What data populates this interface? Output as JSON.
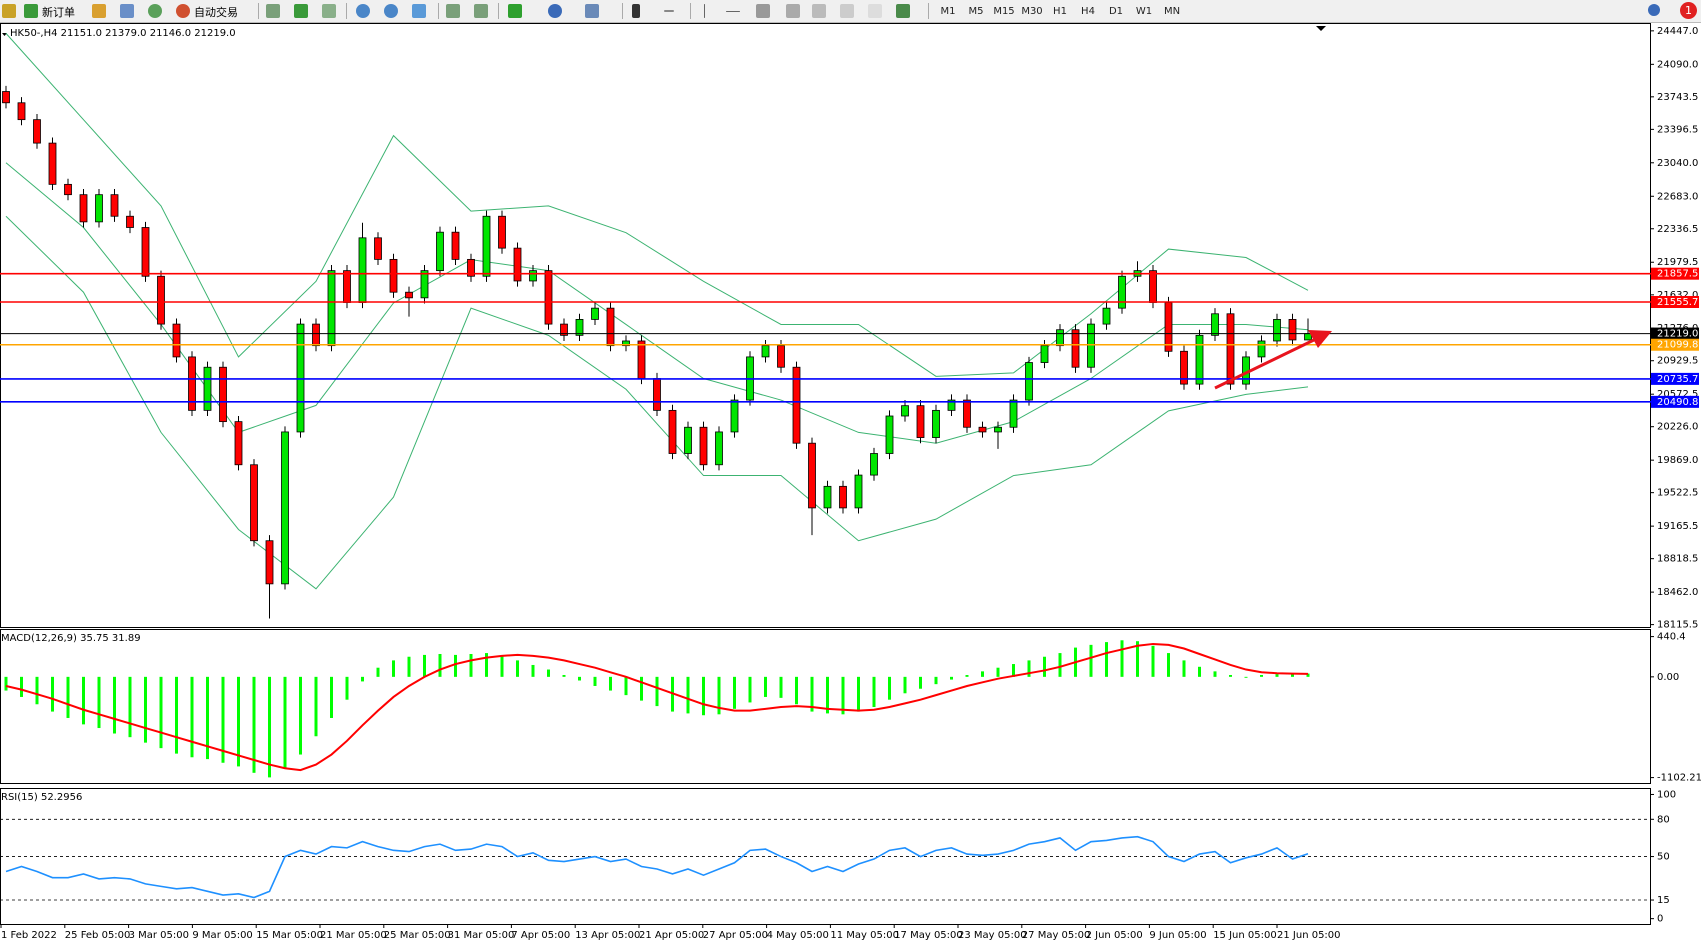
{
  "toolbar": {
    "buttons": [
      "新订单",
      "自动交易"
    ],
    "periods": [
      "M1",
      "M5",
      "M15",
      "M30",
      "H1",
      "H4",
      "D1",
      "W1",
      "MN"
    ],
    "notifications": 1
  },
  "main_chart": {
    "type": "candlestick",
    "title": "HK50-,H4  21151.0 21379.0 21146.0 21219.0",
    "open": [
      23800,
      23680,
      23500,
      23250,
      22810,
      22700,
      22410,
      22700,
      22470,
      22350,
      21830,
      21320,
      20970,
      20400,
      20860,
      20280,
      19820,
      19010,
      18550,
      20170,
      21320,
      21090,
      21890,
      21550,
      22240,
      22010,
      21660,
      21600,
      21890,
      22300,
      22010,
      21830,
      22470,
      22130,
      21780,
      21890,
      21320,
      21200,
      21370,
      21490,
      21090,
      21140,
      20740,
      20400,
      19940,
      20220,
      19820,
      20170,
      20510,
      20970,
      21090,
      20860,
      20050,
      19360,
      19590,
      19360,
      19710,
      19940,
      20340,
      20450,
      20110,
      20400,
      20510,
      20220,
      20170,
      20220,
      20510,
      20910,
      21090,
      21260,
      20860,
      21320,
      21490,
      21830,
      21890,
      21550,
      21030,
      20680,
      21200,
      21430,
      20680,
      20970,
      21140,
      21370,
      21151
    ],
    "high": [
      23860,
      23740,
      23560,
      23310,
      22870,
      22760,
      22760,
      22760,
      22530,
      22410,
      21890,
      21380,
      21030,
      20920,
      20920,
      20340,
      19880,
      19070,
      20230,
      21380,
      21380,
      21950,
      21950,
      22400,
      22300,
      22070,
      21720,
      21950,
      22360,
      22360,
      22070,
      22530,
      22530,
      22190,
      21950,
      21950,
      21380,
      21430,
      21550,
      21550,
      21200,
      21200,
      20800,
      20460,
      20280,
      20280,
      20230,
      20570,
      21030,
      21150,
      21150,
      20920,
      20110,
      19650,
      19650,
      19770,
      20000,
      20400,
      20510,
      20510,
      20460,
      20570,
      20570,
      20280,
      20280,
      20570,
      20970,
      21150,
      21320,
      21320,
      21380,
      21550,
      21890,
      21990,
      21950,
      21610,
      21090,
      21260,
      21490,
      21490,
      21030,
      21200,
      21430,
      21430,
      21379
    ],
    "low": [
      23620,
      23440,
      23190,
      22750,
      22640,
      22350,
      22350,
      22410,
      22290,
      21770,
      21260,
      20910,
      20340,
      20340,
      20220,
      19760,
      18950,
      18180,
      18490,
      20110,
      21030,
      21030,
      21490,
      21490,
      21950,
      21600,
      21400,
      21540,
      21830,
      21950,
      21770,
      21770,
      22070,
      21720,
      21720,
      21260,
      21140,
      21140,
      21310,
      21030,
      21030,
      20680,
      20340,
      19880,
      19880,
      19760,
      19760,
      20110,
      20450,
      20910,
      20800,
      19990,
      19070,
      19300,
      19300,
      19300,
      19650,
      19880,
      20280,
      20050,
      20050,
      20340,
      20160,
      20110,
      19990,
      20160,
      20450,
      20850,
      21030,
      20800,
      20800,
      21260,
      21430,
      21770,
      21490,
      20970,
      20620,
      20620,
      21140,
      20620,
      20620,
      20910,
      21080,
      21090,
      21146
    ],
    "close": [
      23680,
      23500,
      23250,
      22810,
      22700,
      22410,
      22700,
      22470,
      22350,
      21830,
      21320,
      20970,
      20400,
      20860,
      20280,
      19820,
      19010,
      18550,
      20170,
      21320,
      21090,
      21890,
      21550,
      22240,
      22010,
      21660,
      21600,
      21890,
      22300,
      22010,
      21830,
      22470,
      22130,
      21780,
      21890,
      21320,
      21200,
      21370,
      21490,
      21090,
      21140,
      20740,
      20400,
      19940,
      20220,
      19820,
      20170,
      20510,
      20970,
      21090,
      20860,
      20050,
      19360,
      19590,
      19360,
      19710,
      19940,
      20340,
      20450,
      20110,
      20400,
      20510,
      20220,
      20170,
      20220,
      20510,
      20910,
      21090,
      21260,
      20860,
      21320,
      21490,
      21830,
      21890,
      21550,
      21030,
      20680,
      21200,
      21430,
      20680,
      20970,
      21140,
      21370,
      21151,
      21219
    ],
    "bull_color": "#00e600",
    "bear_color": "#ff0000",
    "bands": {
      "color": "#3cb371",
      "index": [
        0,
        5,
        10,
        15,
        20,
        25,
        30,
        35,
        40,
        45,
        50,
        55,
        60,
        65,
        70,
        75,
        80,
        84
      ],
      "upper": [
        24420,
        23500,
        22580,
        20970,
        21776,
        23330,
        22525,
        22580,
        22295,
        21776,
        21316,
        21316,
        20763,
        20800,
        21430,
        22120,
        22030,
        21680
      ],
      "middle": [
        23040,
        22350,
        21316,
        20165,
        20453,
        21545,
        22007,
        21890,
        21316,
        20740,
        20510,
        20165,
        20050,
        20280,
        20740,
        21316,
        21316,
        21260
      ],
      "lower": [
        22470,
        21660,
        20165,
        19130,
        18497,
        19475,
        21490,
        21200,
        20625,
        19705,
        19705,
        19010,
        19240,
        19705,
        19820,
        20395,
        20570,
        20650
      ]
    },
    "levels": [
      {
        "value": 21857.5,
        "color": "#ff0000"
      },
      {
        "value": 21555.7,
        "color": "#ff0000"
      },
      {
        "value": 21219.0,
        "label": "21219.0",
        "color": "#000000"
      },
      {
        "value": 21099.8,
        "color": "#ffa500"
      },
      {
        "value": 20735.7,
        "color": "#0000ff"
      },
      {
        "value": 20490.8,
        "color": "#0000ff"
      }
    ],
    "ylim": [
      18090,
      24520
    ],
    "yticks": [
      {
        "value": 24447.0,
        "label": "24447.0"
      },
      {
        "value": 24090.0,
        "label": "24090.0"
      },
      23743.5,
      23396.5,
      {
        "value": 23040.0,
        "label": "23040.0"
      },
      {
        "value": 22683.0,
        "label": "22683.0"
      },
      22336.5,
      21979.5,
      {
        "value": 21632.0,
        "label": "21632.0"
      },
      {
        "value": 21276.0,
        "label": "21276.0"
      },
      20929.5,
      20572.5,
      {
        "value": 20226.0,
        "label": "20226.0"
      },
      {
        "value": 19869.0,
        "label": "19869.0"
      },
      19522.5,
      19165.5,
      18818.5,
      {
        "value": 18462.0,
        "label": "18462.0"
      },
      18115.5
    ],
    "xlabels": [
      "1 Feb 2022",
      "25 Feb 05:00",
      "3 Mar 05:00",
      "9 Mar 05:00",
      "15 Mar 05:00",
      "21 Mar 05:00",
      "25 Mar 05:00",
      "31 Mar 05:00",
      "7 Apr 05:00",
      "13 Apr 05:00",
      "21 Apr 05:00",
      "27 Apr 05:00",
      "4 May 05:00",
      "11 May 05:00",
      "17 May 05:00",
      "23 May 05:00",
      "27 May 05:00",
      "2 Jun 05:00",
      "9 Jun 05:00",
      "15 Jun 05:00",
      "21 Jun 05:00"
    ]
  },
  "macd": {
    "type": "macd",
    "title": "MACD(12,26,9) 35.75 31.89",
    "hist_color": "#00ff00",
    "signal_color": "#ff0000",
    "histogram": [
      -150,
      -220,
      -300,
      -380,
      -450,
      -520,
      -560,
      -620,
      -660,
      -720,
      -780,
      -840,
      -880,
      -900,
      -940,
      -980,
      -1050,
      -1100,
      -1000,
      -850,
      -650,
      -450,
      -250,
      -50,
      100,
      180,
      220,
      240,
      250,
      240,
      250,
      260,
      230,
      180,
      130,
      80,
      20,
      -40,
      -100,
      -150,
      -200,
      -260,
      -320,
      -380,
      -400,
      -420,
      -410,
      -350,
      -280,
      -220,
      -230,
      -300,
      -380,
      -400,
      -410,
      -380,
      -330,
      -250,
      -180,
      -130,
      -80,
      -30,
      20,
      60,
      100,
      140,
      180,
      220,
      260,
      320,
      350,
      380,
      400,
      390,
      340,
      260,
      180,
      110,
      60,
      20,
      -10,
      20,
      30,
      30,
      35.75
    ],
    "signal": [
      -100,
      -140,
      -190,
      -240,
      -300,
      -360,
      -410,
      -460,
      -510,
      -560,
      -610,
      -660,
      -710,
      -760,
      -810,
      -860,
      -910,
      -960,
      -1000,
      -1020,
      -960,
      -850,
      -700,
      -530,
      -370,
      -220,
      -100,
      0,
      80,
      140,
      180,
      210,
      230,
      240,
      230,
      210,
      180,
      140,
      100,
      50,
      0,
      -60,
      -120,
      -180,
      -240,
      -300,
      -340,
      -370,
      -370,
      -350,
      -330,
      -320,
      -330,
      -350,
      -360,
      -370,
      -360,
      -330,
      -290,
      -250,
      -200,
      -150,
      -100,
      -60,
      -20,
      10,
      40,
      70,
      110,
      160,
      210,
      260,
      300,
      340,
      360,
      350,
      310,
      250,
      190,
      130,
      80,
      50,
      40,
      35,
      31.89
    ],
    "ylim": [
      -1161.5,
      523.5
    ],
    "yticks": [
      440.4,
      {
        "value": 0,
        "label": "0.00"
      },
      -1102.21
    ]
  },
  "rsi": {
    "type": "line",
    "title": "RSI(15) 52.2956",
    "color": "#1e90ff",
    "values": [
      38,
      42,
      38,
      33,
      33,
      36,
      32,
      33,
      32,
      28,
      26,
      24,
      25,
      22,
      19,
      20,
      17,
      22,
      50,
      55,
      52,
      58,
      57,
      62,
      58,
      55,
      54,
      58,
      60,
      55,
      56,
      60,
      58,
      50,
      53,
      47,
      46,
      48,
      50,
      46,
      48,
      42,
      40,
      36,
      40,
      35,
      40,
      45,
      55,
      56,
      50,
      45,
      38,
      42,
      38,
      44,
      48,
      55,
      57,
      50,
      55,
      57,
      52,
      51,
      52,
      55,
      60,
      62,
      65,
      55,
      62,
      63,
      65,
      66,
      62,
      50,
      46,
      52,
      54,
      45,
      49,
      52,
      57,
      48,
      52.2956
    ],
    "ylim": [
      -4.3,
      105.2
    ],
    "yticks": [
      100,
      80,
      50,
      15,
      0
    ],
    "dashed_levels": [
      80,
      50,
      15
    ]
  }
}
